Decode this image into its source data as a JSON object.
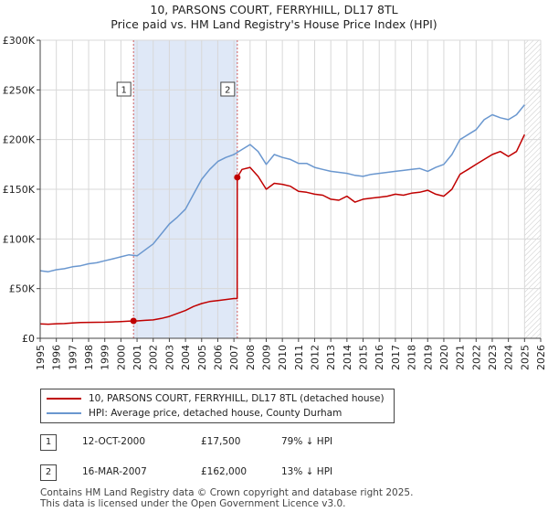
{
  "title_line1": "10, PARSONS COURT, FERRYHILL, DL17 8TL",
  "title_line2": "Price paid vs. HM Land Registry's House Price Index (HPI)",
  "colors": {
    "property": "#c00000",
    "hpi": "#6a97cf",
    "vline": "#d06060",
    "shade": "#dfe8f7",
    "grid": "#d8d8d8"
  },
  "chart_data": {
    "type": "line",
    "xlim": [
      1995,
      2026
    ],
    "ylim": [
      0,
      300000
    ],
    "y_ticks": [
      0,
      50000,
      100000,
      150000,
      200000,
      250000,
      300000
    ],
    "y_tick_labels": [
      "£0",
      "£50K",
      "£100K",
      "£150K",
      "£200K",
      "£250K",
      "£300K"
    ],
    "x_ticks": [
      1995,
      1996,
      1997,
      1998,
      1999,
      2000,
      2001,
      2002,
      2003,
      2004,
      2005,
      2006,
      2007,
      2008,
      2009,
      2010,
      2011,
      2012,
      2013,
      2014,
      2015,
      2016,
      2017,
      2018,
      2019,
      2020,
      2021,
      2022,
      2023,
      2024,
      2025,
      2026
    ],
    "x_tick_labels": [
      "1995",
      "1996",
      "1997",
      "1998",
      "1999",
      "2000",
      "2001",
      "2002",
      "2003",
      "2004",
      "2005",
      "2006",
      "2007",
      "2008",
      "2009",
      "2010",
      "2011",
      "2012",
      "2013",
      "2014",
      "2015",
      "2016",
      "2017",
      "2018",
      "2019",
      "2020",
      "2021",
      "2022",
      "2023",
      "2024",
      "2025",
      "2026"
    ],
    "grid": true,
    "shaded_ranges": [
      [
        2000.78,
        2007.21
      ]
    ],
    "hatched_from": 2025.0,
    "series": [
      {
        "name": "10, PARSONS COURT, FERRYHILL, DL17 8TL (detached house)",
        "x": [
          1995.0,
          1995.5,
          1996.0,
          1996.5,
          1997.0,
          1997.5,
          1998.0,
          1998.5,
          1999.0,
          1999.5,
          2000.0,
          2000.5,
          2000.78,
          2001.0,
          2001.5,
          2002.0,
          2002.5,
          2003.0,
          2003.5,
          2004.0,
          2004.5,
          2005.0,
          2005.5,
          2006.0,
          2006.5,
          2007.0,
          2007.2,
          2007.21,
          2007.5,
          2008.0,
          2008.5,
          2009.0,
          2009.5,
          2010.0,
          2010.5,
          2011.0,
          2011.5,
          2012.0,
          2012.5,
          2013.0,
          2013.5,
          2014.0,
          2014.5,
          2015.0,
          2015.5,
          2016.0,
          2016.5,
          2017.0,
          2017.5,
          2018.0,
          2018.5,
          2019.0,
          2019.5,
          2020.0,
          2020.5,
          2021.0,
          2021.5,
          2022.0,
          2022.5,
          2023.0,
          2023.5,
          2024.0,
          2024.5,
          2025.0
        ],
        "values": [
          14500,
          14200,
          14600,
          14800,
          15400,
          15800,
          16000,
          16100,
          16200,
          16500,
          16800,
          17200,
          17500,
          17500,
          18000,
          18500,
          20000,
          22000,
          25000,
          28000,
          32000,
          35000,
          37000,
          38000,
          39000,
          40000,
          40000,
          162000,
          170000,
          172000,
          163000,
          150000,
          156000,
          155000,
          153000,
          148000,
          147000,
          145000,
          144000,
          140000,
          139000,
          143000,
          137000,
          140000,
          141000,
          142000,
          143000,
          145000,
          144000,
          146000,
          147000,
          149000,
          145000,
          143000,
          150000,
          165000,
          170000,
          175000,
          180000,
          185000,
          188000,
          183000,
          188000,
          205000
        ]
      },
      {
        "name": "HPI: Average price, detached house, County Durham",
        "x": [
          1995.0,
          1995.5,
          1996.0,
          1996.5,
          1997.0,
          1997.5,
          1998.0,
          1998.5,
          1999.0,
          1999.5,
          2000.0,
          2000.5,
          2001.0,
          2001.5,
          2002.0,
          2002.5,
          2003.0,
          2003.5,
          2004.0,
          2004.5,
          2005.0,
          2005.5,
          2006.0,
          2006.5,
          2007.0,
          2007.5,
          2008.0,
          2008.5,
          2009.0,
          2009.5,
          2010.0,
          2010.5,
          2011.0,
          2011.5,
          2012.0,
          2012.5,
          2013.0,
          2013.5,
          2014.0,
          2014.5,
          2015.0,
          2015.5,
          2016.0,
          2016.5,
          2017.0,
          2017.5,
          2018.0,
          2018.5,
          2019.0,
          2019.5,
          2020.0,
          2020.5,
          2021.0,
          2021.5,
          2022.0,
          2022.5,
          2023.0,
          2023.5,
          2024.0,
          2024.5,
          2025.0
        ],
        "values": [
          68000,
          67000,
          69000,
          70000,
          72000,
          73000,
          75000,
          76000,
          78000,
          80000,
          82000,
          84000,
          83000,
          89000,
          95000,
          105000,
          115000,
          122000,
          130000,
          145000,
          160000,
          170000,
          178000,
          182000,
          185000,
          190000,
          195000,
          188000,
          175000,
          185000,
          182000,
          180000,
          176000,
          176000,
          172000,
          170000,
          168000,
          167000,
          166000,
          164000,
          163000,
          165000,
          166000,
          167000,
          168000,
          169000,
          170000,
          171000,
          168000,
          172000,
          175000,
          185000,
          200000,
          205000,
          210000,
          220000,
          225000,
          222000,
          220000,
          225000,
          235000
        ]
      }
    ],
    "markers": [
      {
        "label": "1",
        "x": 2000.78,
        "y": 17500
      },
      {
        "label": "2",
        "x": 2007.21,
        "y": 162000
      }
    ]
  },
  "legend": {
    "property": "10, PARSONS COURT, FERRYHILL, DL17 8TL (detached house)",
    "hpi": "HPI: Average price, detached house, County Durham"
  },
  "transactions": [
    {
      "num": "1",
      "date": "12-OCT-2000",
      "price": "£17,500",
      "hpi": "79% ↓ HPI"
    },
    {
      "num": "2",
      "date": "16-MAR-2007",
      "price": "£162,000",
      "hpi": "13% ↓ HPI"
    }
  ],
  "footer_line1": "Contains HM Land Registry data © Crown copyright and database right 2025.",
  "footer_line2": "This data is licensed under the Open Government Licence v3.0."
}
